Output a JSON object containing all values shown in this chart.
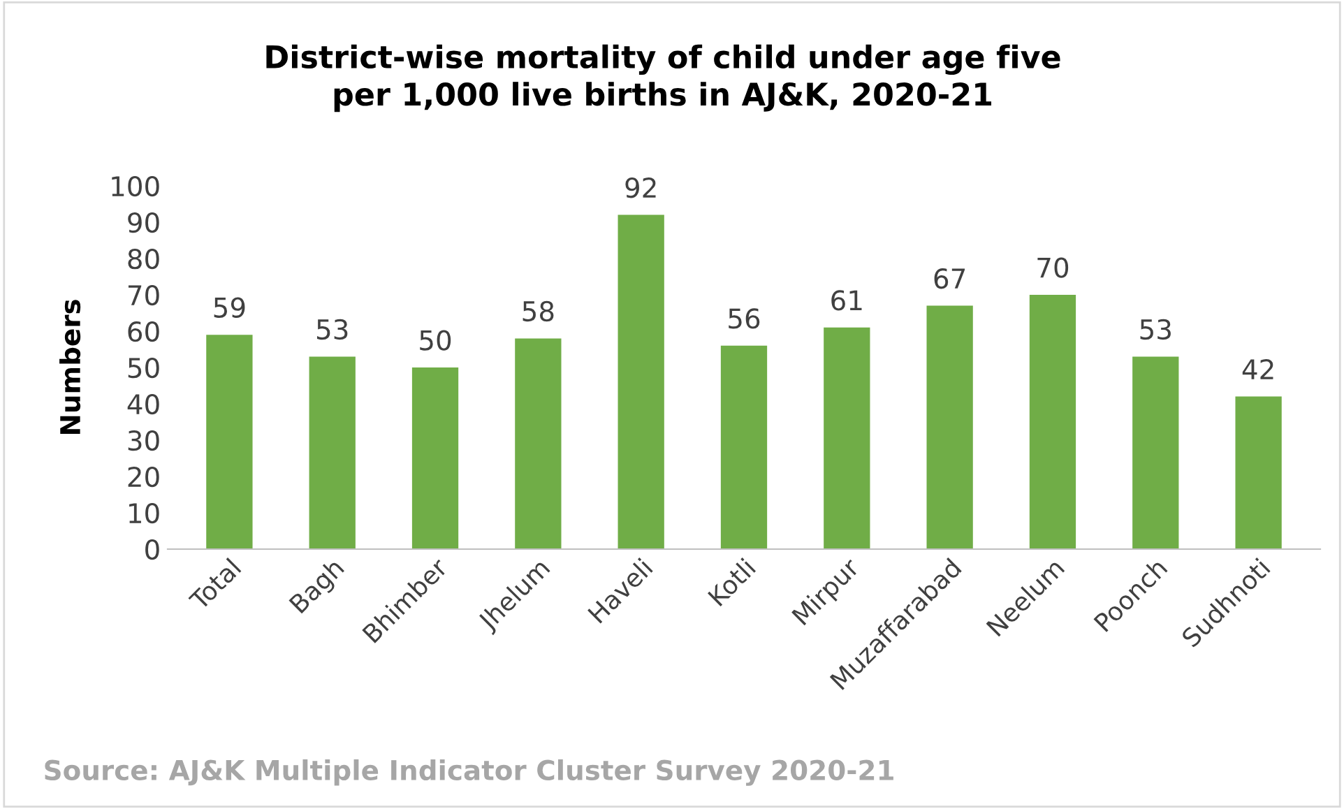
{
  "chart_data": {
    "type": "bar",
    "title": "District-wise mortality of child under age five\nper 1,000 live births in AJ&K, 2020-21",
    "ylabel": "Numbers",
    "categories": [
      "Total",
      "Bagh",
      "Bhimber",
      "Jhelum",
      "Haveli",
      "Kotli",
      "Mirpur",
      "Muzaffarabad",
      "Neelum",
      "Poonch",
      "Sudhnoti"
    ],
    "values": [
      59,
      53,
      50,
      58,
      92,
      56,
      61,
      67,
      70,
      53,
      42
    ],
    "color": "#70ad47",
    "ylim": [
      0,
      100
    ],
    "yticks": [
      0,
      10,
      20,
      30,
      40,
      50,
      60,
      70,
      80,
      90,
      100
    ],
    "grid": false,
    "data_labels": true,
    "annotations": [
      "Source: AJ&K Multiple Indicator Cluster Survey 2020-21"
    ]
  }
}
